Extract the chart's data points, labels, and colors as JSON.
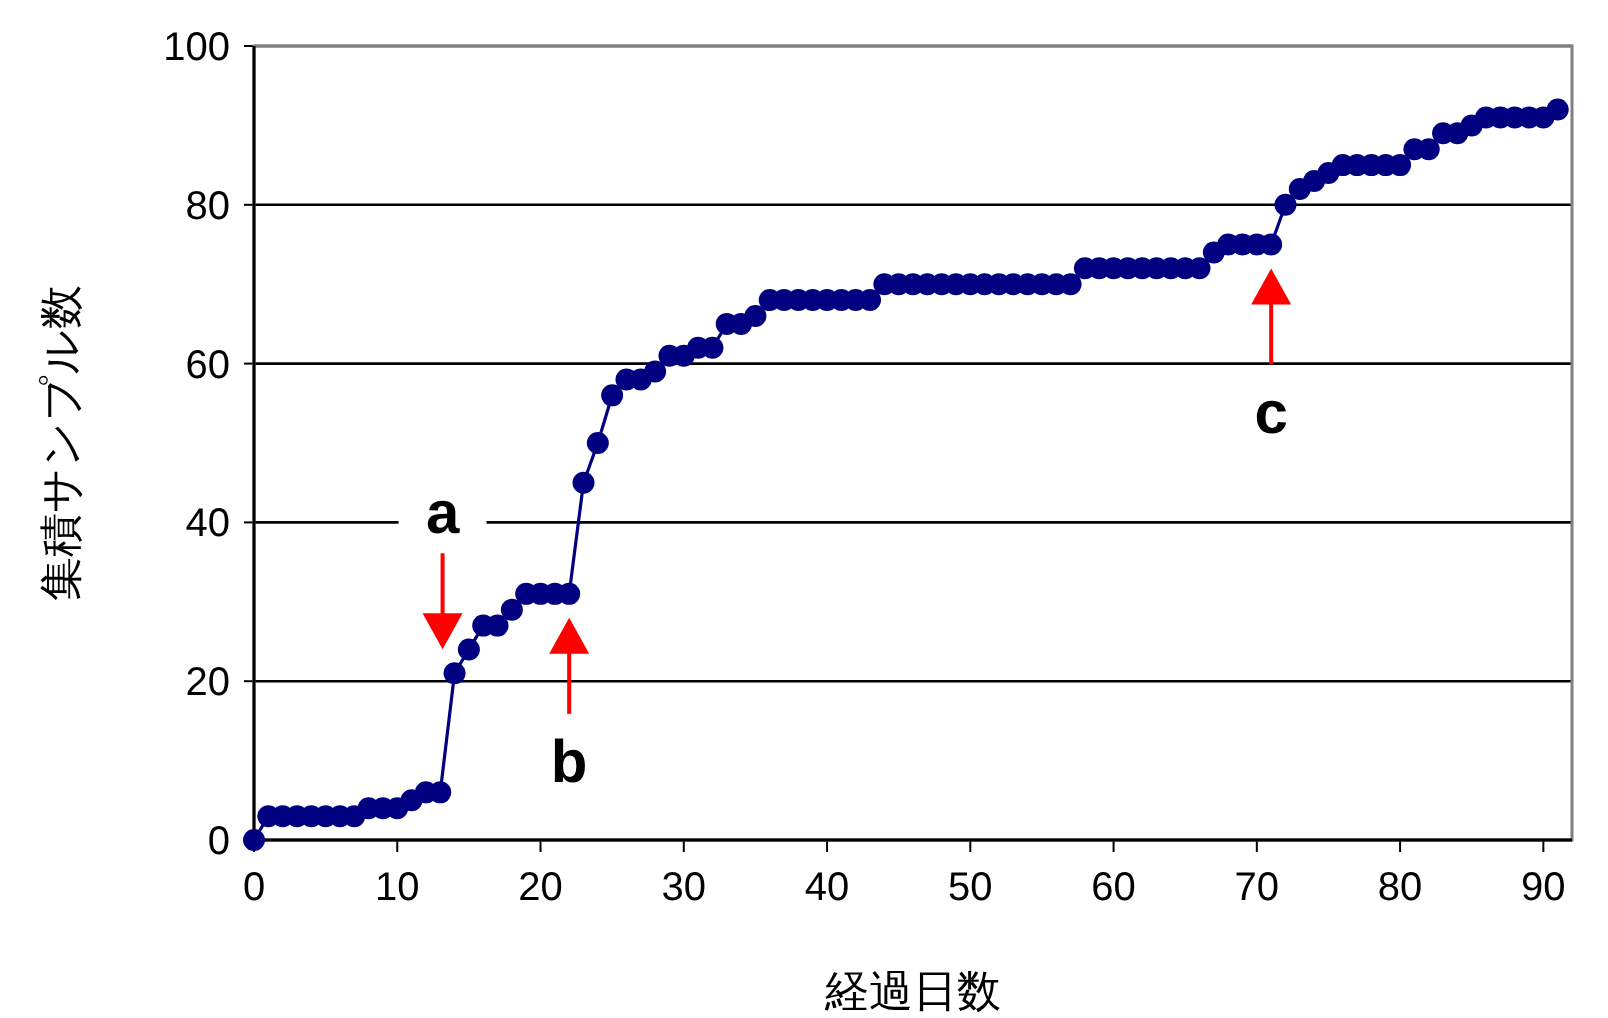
{
  "chart_data": {
    "type": "line",
    "xlabel": "経過日数",
    "ylabel": "集積サンプル数",
    "x": [
      0,
      1,
      2,
      3,
      4,
      5,
      6,
      7,
      8,
      9,
      10,
      11,
      12,
      13,
      14,
      15,
      16,
      17,
      18,
      19,
      20,
      21,
      22,
      23,
      24,
      25,
      26,
      27,
      28,
      29,
      30,
      31,
      32,
      33,
      34,
      35,
      36,
      37,
      38,
      39,
      40,
      41,
      42,
      43,
      44,
      45,
      46,
      47,
      48,
      49,
      50,
      51,
      52,
      53,
      54,
      55,
      56,
      57,
      58,
      59,
      60,
      61,
      62,
      63,
      64,
      65,
      66,
      67,
      68,
      69,
      70,
      71,
      72,
      73,
      74,
      75,
      76,
      77,
      78,
      79,
      80,
      81,
      82,
      83,
      84,
      85,
      86,
      87,
      88,
      89,
      90,
      91
    ],
    "series": [
      {
        "color": "#000080",
        "values": [
          0,
          3,
          3,
          3,
          3,
          3,
          3,
          3,
          4,
          4,
          4,
          5,
          6,
          6,
          21,
          24,
          27,
          27,
          29,
          31,
          31,
          31,
          31,
          45,
          50,
          56,
          58,
          58,
          59,
          61,
          61,
          62,
          62,
          65,
          65,
          66,
          68,
          68,
          68,
          68,
          68,
          68,
          68,
          68,
          70,
          70,
          70,
          70,
          70,
          70,
          70,
          70,
          70,
          70,
          70,
          70,
          70,
          70,
          72,
          72,
          72,
          72,
          72,
          72,
          72,
          72,
          72,
          74,
          75,
          75,
          75,
          75,
          80,
          82,
          83,
          84,
          85,
          85,
          85,
          85,
          85,
          87,
          87,
          89,
          89,
          90,
          91,
          91,
          91,
          91,
          91,
          92
        ]
      }
    ],
    "xlim": [
      0,
      92
    ],
    "xticks": [
      0,
      10,
      20,
      30,
      40,
      50,
      60,
      70,
      80,
      90
    ],
    "ylim": [
      0,
      100
    ],
    "yticks": [
      0,
      20,
      40,
      60,
      80,
      100
    ],
    "grid": "y",
    "marker": "circle",
    "line_style": "solid",
    "annotations": [
      {
        "text": "a",
        "x": 14,
        "y": 21
      },
      {
        "text": "b",
        "x": 22,
        "y": 31
      },
      {
        "text": "c",
        "x": 71,
        "y": 75
      }
    ]
  }
}
